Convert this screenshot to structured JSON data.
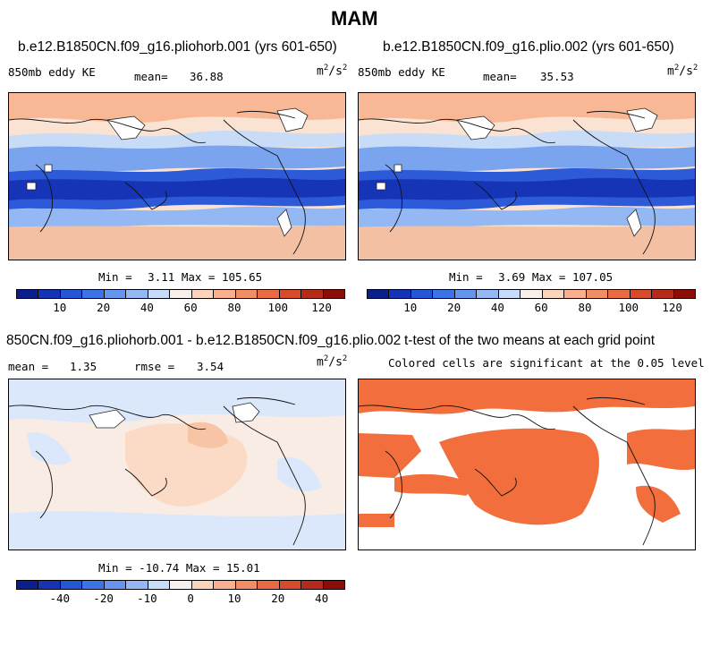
{
  "figure_title": "MAM",
  "panels": {
    "tl": {
      "title": "b.e12.B1850CN.f09_g16.pliohorb.001 (yrs 601-650)",
      "field": "850mb eddy KE",
      "mean_label": "mean=",
      "mean_value": "36.88",
      "units": "m",
      "min_label": "Min =",
      "min_value": "3.11",
      "max_label": "Max =",
      "max_value": "105.65"
    },
    "tr": {
      "title": "b.e12.B1850CN.f09_g16.plio.002 (yrs 601-650)",
      "field": "850mb eddy KE",
      "mean_label": "mean=",
      "mean_value": "35.53",
      "units": "m",
      "min_label": "Min =",
      "min_value": "3.69",
      "max_label": "Max =",
      "max_value": "107.05"
    },
    "bl": {
      "title": "850CN.f09_g16.pliohorb.001 - b.e12.B1850CN.f09_g16.plio.002",
      "mean_label": "mean =",
      "mean_value": "1.35",
      "rmse_label": "rmse =",
      "rmse_value": "3.54",
      "units": "m",
      "min_label": "Min =",
      "min_value": "-10.74",
      "max_label": "Max =",
      "max_value": "15.01"
    },
    "br": {
      "title": "t-test of the two means at each grid point",
      "subtitle": "Colored cells are significant at the 0.05 level"
    }
  },
  "units_exp": {
    "m": "2",
    "s": "2",
    "slash": "/s"
  },
  "colorbar_abs": {
    "colors": [
      "#0a1e8c",
      "#1434b4",
      "#2456d6",
      "#3a74e6",
      "#6496ee",
      "#94b8f4",
      "#c6dcfa",
      "#f8f0ea",
      "#fcd4bc",
      "#f8b08e",
      "#f28e66",
      "#ea6a44",
      "#d84a2c",
      "#b62a1a",
      "#8a0e06"
    ],
    "ticks": [
      "10",
      "20",
      "40",
      "60",
      "80",
      "100",
      "120"
    ]
  },
  "colorbar_diff": {
    "colors": [
      "#0a1e8c",
      "#1434b4",
      "#2456d6",
      "#3a74e6",
      "#6496ee",
      "#94b8f4",
      "#c6dcfa",
      "#f8f0ea",
      "#fcd4bc",
      "#f8b08e",
      "#f28e66",
      "#ea6a44",
      "#d84a2c",
      "#b62a1a",
      "#8a0e06"
    ],
    "ticks": [
      "-40",
      "-20",
      "-10",
      "0",
      "10",
      "20",
      "40"
    ]
  },
  "significance_color": "#f26e3c"
}
